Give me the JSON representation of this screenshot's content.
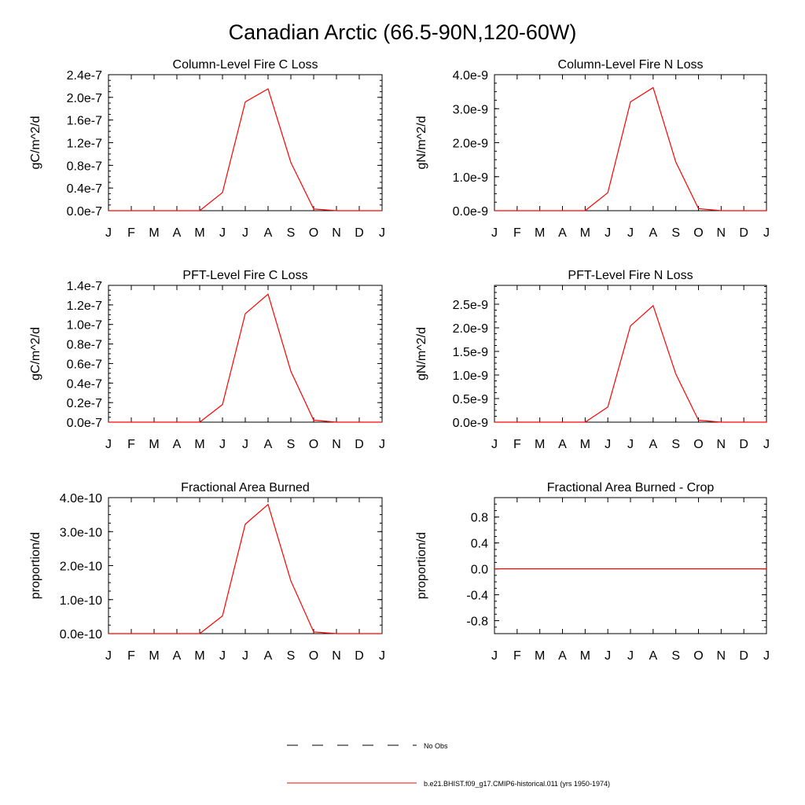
{
  "figure": {
    "title": "Canadian Arctic (66.5-90N,120-60W)"
  },
  "colors": {
    "model_line": "#ff0000",
    "obs_line": "#000000",
    "axis": "#000000",
    "background": "#ffffff"
  },
  "legend": {
    "placement": "bottom-center",
    "entries": [
      {
        "label": "No Obs",
        "style": "dashed",
        "color": "#000000"
      },
      {
        "label": "b.e21.BHIST.f09_g17.CMIP6-historical.011 (yrs 1950-1974)",
        "style": "solid",
        "color": "#ff0000"
      }
    ]
  },
  "chart_data": [
    {
      "type": "line",
      "title": "Column-Level Fire C Loss",
      "ylabel": "gC/m^2/d",
      "x": [
        "J",
        "F",
        "M",
        "A",
        "M",
        "J",
        "J",
        "A",
        "S",
        "O",
        "N",
        "D",
        "J"
      ],
      "ylim": [
        0,
        2.4e-07
      ],
      "yticks": [
        0,
        4e-08,
        8e-08,
        1.2e-07,
        1.6e-07,
        2e-07,
        2.4e-07
      ],
      "yticklabels": [
        "0.0e-7",
        "0.4e-7",
        "0.8e-7",
        "1.2e-7",
        "1.6e-7",
        "2.0e-7",
        "2.4e-7"
      ],
      "series": [
        {
          "values": [
            0,
            0,
            0,
            0,
            0,
            3.2e-08,
            1.92e-07,
            2.15e-07,
            8.5e-08,
            3e-09,
            0,
            0,
            0
          ]
        }
      ]
    },
    {
      "type": "line",
      "title": "Column-Level Fire N Loss",
      "ylabel": "gN/m^2/d",
      "x": [
        "J",
        "F",
        "M",
        "A",
        "M",
        "J",
        "J",
        "A",
        "S",
        "O",
        "N",
        "D",
        "J"
      ],
      "ylim": [
        0,
        4e-09
      ],
      "yticks": [
        0,
        1e-09,
        2e-09,
        3e-09,
        4e-09
      ],
      "yticklabels": [
        "0.0e-9",
        "1.0e-9",
        "2.0e-9",
        "3.0e-9",
        "4.0e-9"
      ],
      "series": [
        {
          "values": [
            0,
            0,
            0,
            0,
            0,
            5.3e-10,
            3.2e-09,
            3.62e-09,
            1.43e-09,
            6e-11,
            0,
            0,
            0
          ]
        }
      ]
    },
    {
      "type": "line",
      "title": "PFT-Level Fire C Loss",
      "ylabel": "gC/m^2/d",
      "x": [
        "J",
        "F",
        "M",
        "A",
        "M",
        "J",
        "J",
        "A",
        "S",
        "O",
        "N",
        "D",
        "J"
      ],
      "ylim": [
        0,
        1.4e-07
      ],
      "yticks": [
        0,
        2e-08,
        4e-08,
        6e-08,
        8e-08,
        1e-07,
        1.2e-07,
        1.4e-07
      ],
      "yticklabels": [
        "0.0e-7",
        "0.2e-7",
        "0.4e-7",
        "0.6e-7",
        "0.8e-7",
        "1.0e-7",
        "1.2e-7",
        "1.4e-7"
      ],
      "series": [
        {
          "values": [
            0,
            0,
            0,
            0,
            0,
            1.8e-08,
            1.11e-07,
            1.31e-07,
            5.2e-08,
            2e-09,
            0,
            0,
            0
          ]
        }
      ]
    },
    {
      "type": "line",
      "title": "PFT-Level Fire N Loss",
      "ylabel": "gN/m^2/d",
      "x": [
        "J",
        "F",
        "M",
        "A",
        "M",
        "J",
        "J",
        "A",
        "S",
        "O",
        "N",
        "D",
        "J"
      ],
      "ylim": [
        0,
        2.9e-09
      ],
      "yticks": [
        0,
        5e-10,
        1e-09,
        1.5e-09,
        2e-09,
        2.5e-09
      ],
      "yticklabels": [
        "0.0e-9",
        "0.5e-9",
        "1.0e-9",
        "1.5e-9",
        "2.0e-9",
        "2.5e-9"
      ],
      "series": [
        {
          "values": [
            0,
            0,
            0,
            0,
            0,
            3.2e-10,
            2.04e-09,
            2.47e-09,
            1.02e-09,
            4e-11,
            0,
            0,
            0
          ]
        }
      ]
    },
    {
      "type": "line",
      "title": "Fractional Area Burned",
      "ylabel": "proportion/d",
      "x": [
        "J",
        "F",
        "M",
        "A",
        "M",
        "J",
        "J",
        "A",
        "S",
        "O",
        "N",
        "D",
        "J"
      ],
      "ylim": [
        0,
        4e-10
      ],
      "yticks": [
        0,
        1e-10,
        2e-10,
        3e-10,
        4e-10
      ],
      "yticklabels": [
        "0.0e-10",
        "1.0e-10",
        "2.0e-10",
        "3.0e-10",
        "4.0e-10"
      ],
      "series": [
        {
          "values": [
            0,
            0,
            0,
            0,
            0,
            5.2e-11,
            3.22e-10,
            3.8e-10,
            1.55e-10,
            5e-12,
            0,
            0,
            0
          ]
        }
      ]
    },
    {
      "type": "line",
      "title": "Fractional Area Burned - Crop",
      "ylabel": "proportion/d",
      "x": [
        "J",
        "F",
        "M",
        "A",
        "M",
        "J",
        "J",
        "A",
        "S",
        "O",
        "N",
        "D",
        "J"
      ],
      "ylim": [
        -1.0,
        1.1
      ],
      "yticks": [
        -0.8,
        -0.4,
        0.0,
        0.4,
        0.8
      ],
      "yticklabels": [
        "-0.8",
        "-0.4",
        "0.0",
        "0.4",
        "0.8"
      ],
      "series": [
        {
          "values": [
            0,
            0,
            0,
            0,
            0,
            0,
            0,
            0,
            0,
            0,
            0,
            0,
            0
          ]
        }
      ]
    }
  ]
}
